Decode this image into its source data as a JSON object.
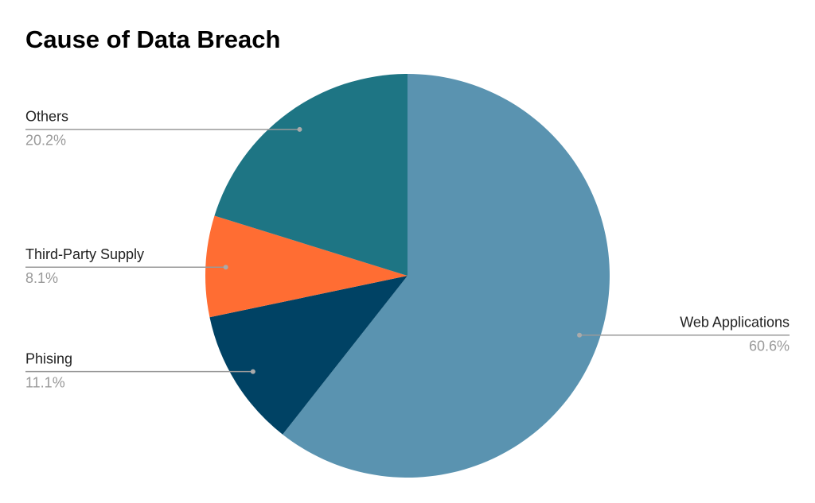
{
  "chart_data": {
    "type": "pie",
    "title": "Cause of Data Breach",
    "categories": [
      "Web Applications",
      "Phising",
      "Third-Party Supply",
      "Others"
    ],
    "values": [
      60.6,
      11.1,
      8.1,
      20.2
    ],
    "value_labels": [
      "60.6%",
      "11.1%",
      "8.1%",
      "20.2%"
    ],
    "colors": [
      "#5a93b0",
      "#004264",
      "#ff6d33",
      "#1e7584"
    ]
  }
}
